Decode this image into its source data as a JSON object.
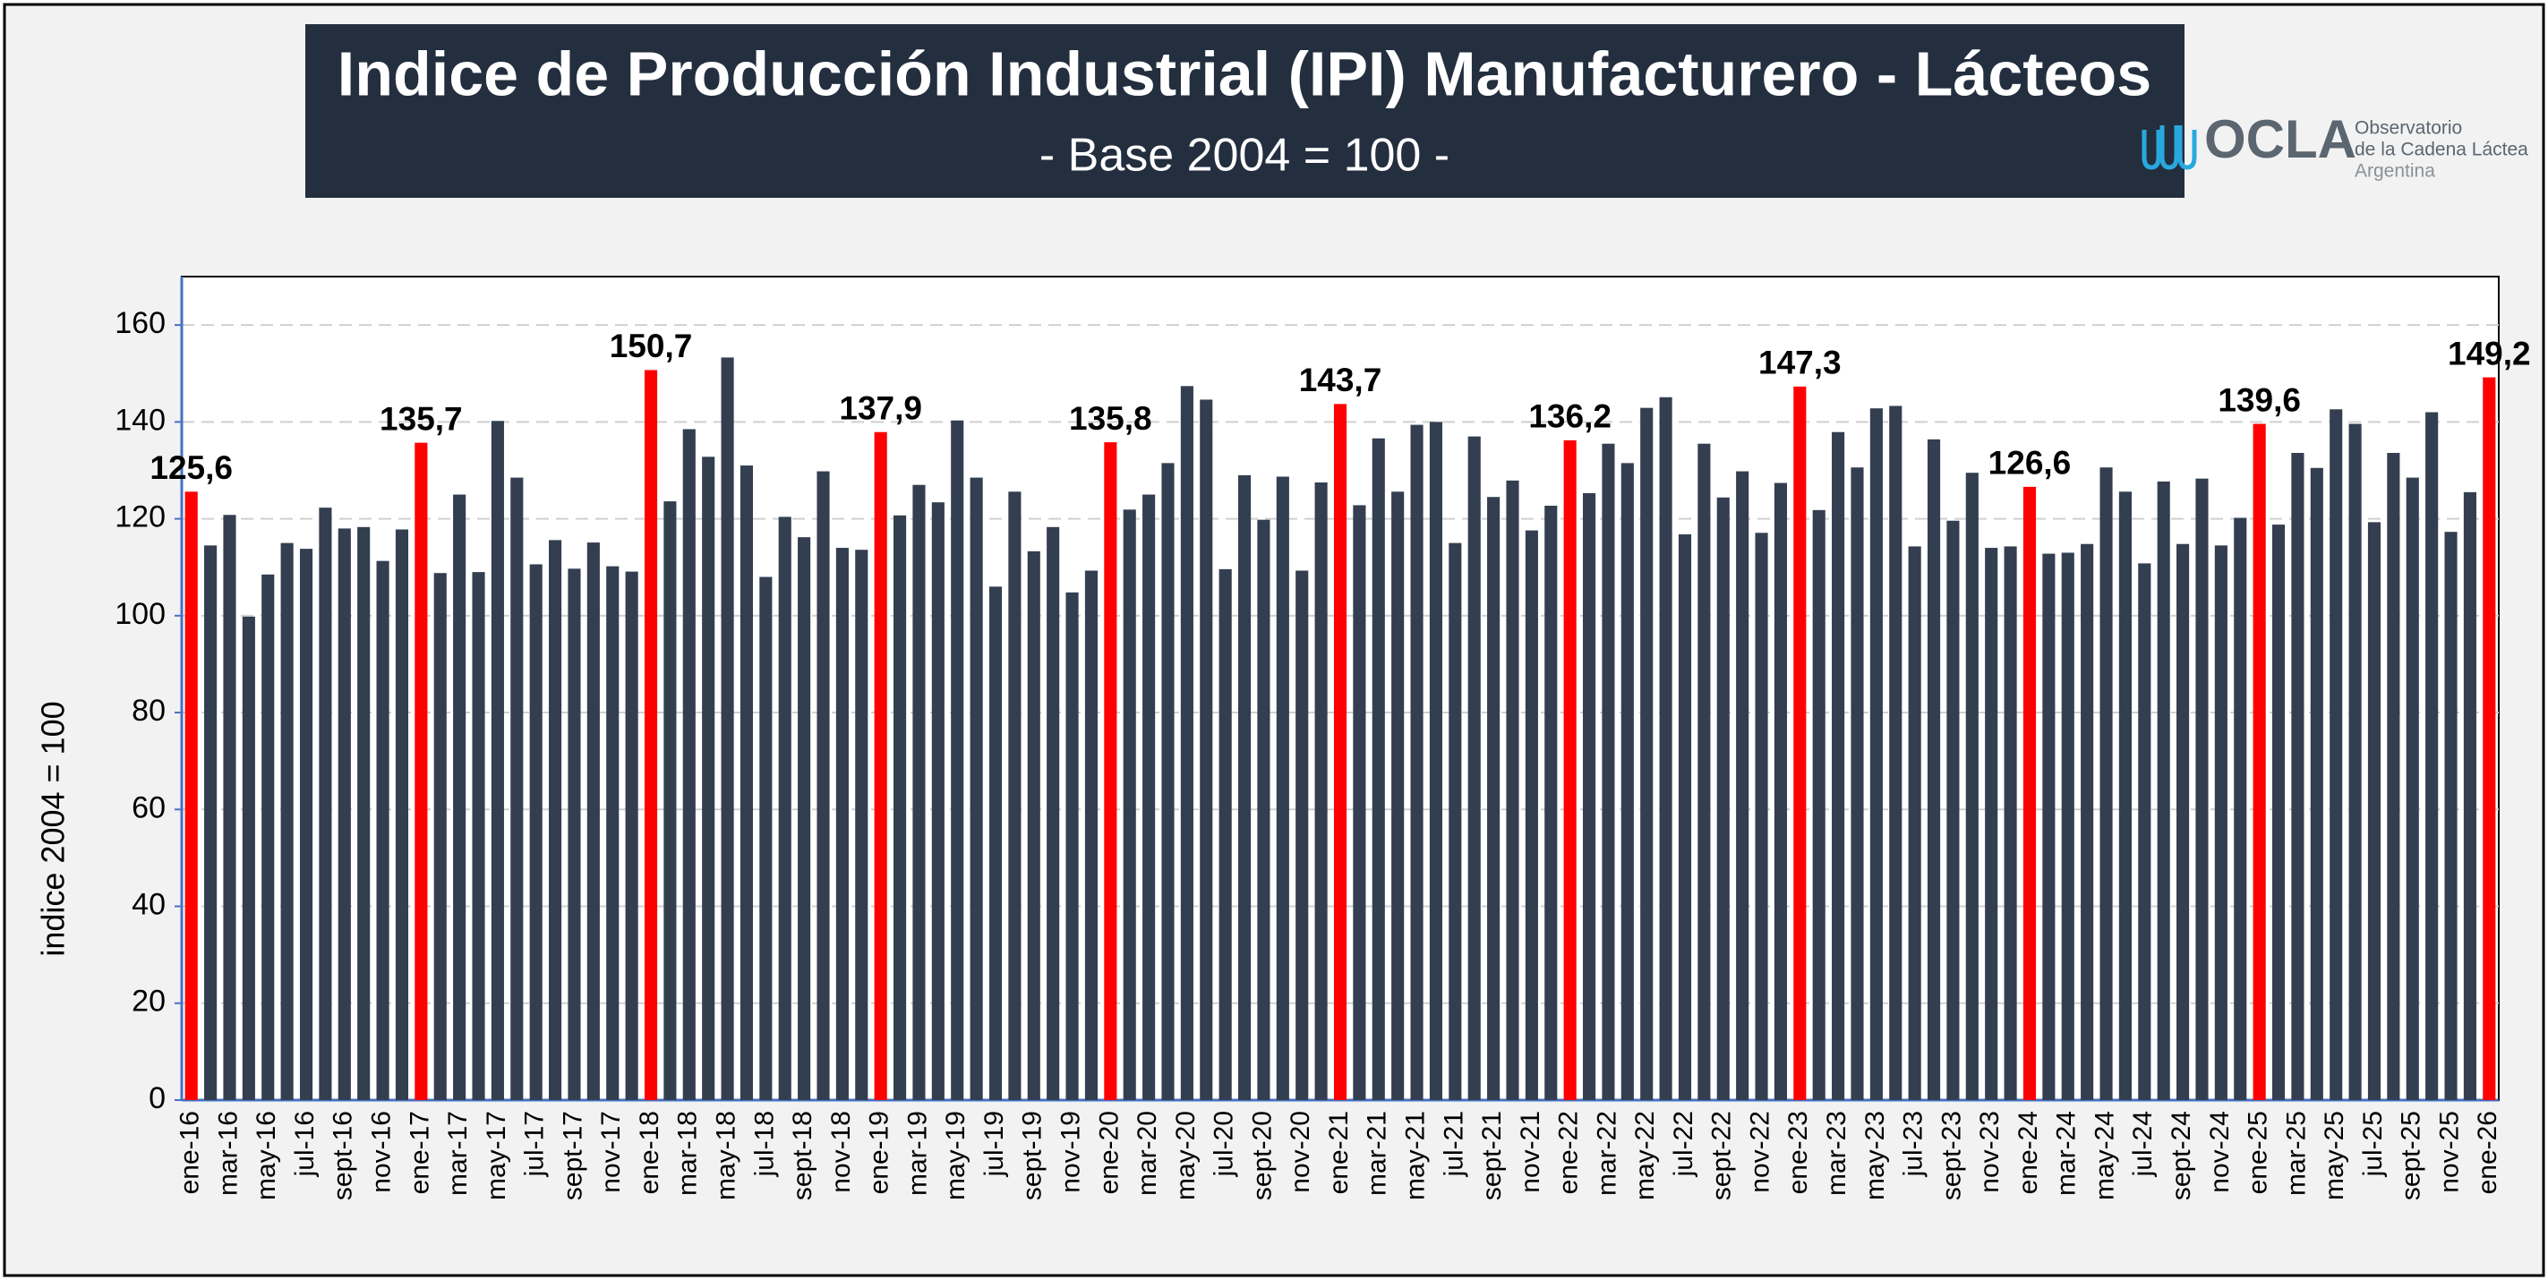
{
  "chart_data": {
    "type": "bar",
    "title": "Indice de Producción Industrial (IPI) Manufacturero - Lácteos",
    "subtitle": "- Base 2004 = 100 -",
    "y_label": "indice 2004 = 100",
    "logo": {
      "mark": "OCLA",
      "lines": [
        "Observatorio",
        "de la Cadena Láctea",
        "Argentina"
      ]
    },
    "categories": [
      "ene-16",
      null,
      "mar-16",
      null,
      "may-16",
      null,
      "jul-16",
      null,
      "sept-16",
      null,
      "nov-16",
      null,
      "ene-17",
      null,
      "mar-17",
      null,
      "may-17",
      null,
      "jul-17",
      null,
      "sept-17",
      null,
      "nov-17",
      null,
      "ene-18",
      null,
      "mar-18",
      null,
      "may-18",
      null,
      "jul-18",
      null,
      "sept-18",
      null,
      "nov-18",
      null,
      "ene-19",
      null,
      "mar-19",
      null,
      "may-19",
      null,
      "jul-19",
      null,
      "sept-19",
      null,
      "nov-19",
      null,
      "ene-20",
      null,
      "mar-20",
      null,
      "may-20",
      null,
      "jul-20",
      null,
      "sept-20",
      null,
      "nov-20",
      null,
      "ene-21",
      null,
      "mar-21",
      null,
      "may-21",
      null,
      "jul-21",
      null,
      "sept-21",
      null,
      "nov-21",
      null,
      "ene-22",
      null,
      "mar-22",
      null,
      "may-22",
      null,
      "jul-22",
      null,
      "sept-22",
      null,
      "nov-22",
      null,
      "ene-23",
      null,
      "mar-23",
      null,
      "may-23",
      null,
      "jul-23",
      null,
      "sept-23",
      null,
      "nov-23",
      null,
      "ene-24",
      null,
      "mar-24",
      null,
      "may-24",
      null,
      "jul-24",
      null,
      "sept-24",
      null,
      "nov-24",
      null,
      "ene-25",
      null,
      "mar-25",
      null,
      "may-25",
      null,
      "jul-25",
      null,
      "sept-25",
      null,
      "nov-25",
      null,
      "ene-26"
    ],
    "values": [
      125.6,
      114.5,
      120.8,
      99.8,
      108.5,
      115,
      113.8,
      122.3,
      118,
      118.3,
      111.3,
      117.8,
      135.7,
      108.8,
      125,
      109,
      140.2,
      128.5,
      110.6,
      115.6,
      109.7,
      115.1,
      110.2,
      109.1,
      150.7,
      123.6,
      138.5,
      132.8,
      153.3,
      131,
      108,
      120.4,
      116.2,
      129.8,
      114,
      113.6,
      137.9,
      120.7,
      127,
      123.4,
      140.3,
      128.5,
      106,
      125.6,
      113.3,
      118.3,
      104.8,
      109.3,
      135.8,
      121.9,
      125,
      131.5,
      147.4,
      144.6,
      109.6,
      129,
      119.8,
      128.7,
      109.3,
      127.5,
      143.7,
      122.8,
      136.6,
      125.6,
      139.4,
      140,
      115,
      137,
      124.5,
      127.9,
      117.6,
      122.7,
      136.2,
      125.3,
      135.5,
      131.5,
      142.9,
      145.1,
      116.8,
      135.5,
      124.4,
      129.8,
      117.1,
      127.4,
      147.3,
      121.8,
      137.9,
      130.6,
      142.8,
      143.3,
      114.3,
      136.4,
      119.6,
      129.5,
      114,
      114.3,
      126.6,
      112.8,
      113,
      114.8,
      130.6,
      125.6,
      110.8,
      127.7,
      114.8,
      128.3,
      114.5,
      120.2,
      139.6,
      118.8,
      133.6,
      130.5,
      142.6,
      139.6,
      119.3,
      133.6,
      128.5,
      142,
      117.3,
      125.5,
      149.2
    ],
    "value_labels": [
      "125,6",
      null,
      null,
      null,
      null,
      null,
      null,
      null,
      null,
      null,
      null,
      null,
      "135,7",
      null,
      null,
      null,
      null,
      null,
      null,
      null,
      null,
      null,
      null,
      null,
      "150,7",
      null,
      null,
      null,
      null,
      null,
      null,
      null,
      null,
      null,
      null,
      null,
      "137,9",
      null,
      null,
      null,
      null,
      null,
      null,
      null,
      null,
      null,
      null,
      null,
      "135,8",
      null,
      null,
      null,
      null,
      null,
      null,
      null,
      null,
      null,
      null,
      null,
      "143,7",
      null,
      null,
      null,
      null,
      null,
      null,
      null,
      null,
      null,
      null,
      null,
      "136,2",
      null,
      null,
      null,
      null,
      null,
      null,
      null,
      null,
      null,
      null,
      null,
      "147,3",
      null,
      null,
      null,
      null,
      null,
      null,
      null,
      null,
      null,
      null,
      null,
      "126,6",
      null,
      null,
      null,
      null,
      null,
      null,
      null,
      null,
      null,
      null,
      null,
      "139,6",
      null,
      null,
      null,
      null,
      null,
      null,
      null,
      null,
      null,
      null,
      null,
      "149,2"
    ],
    "color": "#333f50",
    "highlight_color": "#ff0000",
    "ylim": [
      0,
      170
    ],
    "yticks": [
      0,
      20,
      40,
      60,
      80,
      100,
      120,
      140,
      160
    ],
    "grid": true
  }
}
